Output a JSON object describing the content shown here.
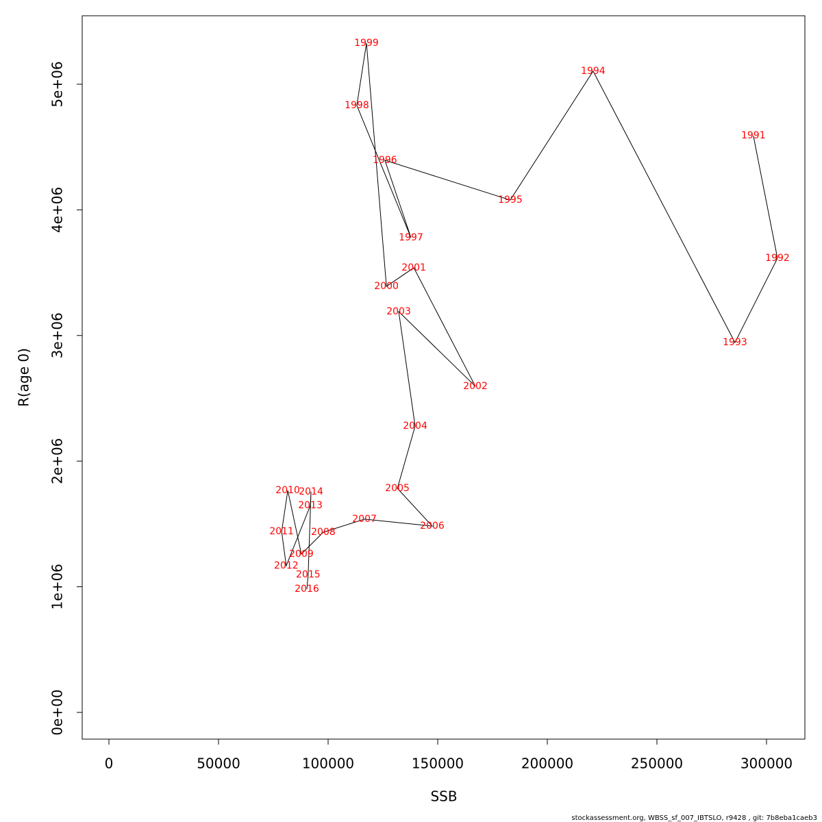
{
  "chart_data": {
    "type": "line",
    "xlabel": "SSB",
    "ylabel": "R(age 0)",
    "footnote": "stockassessment.org, WBSS_sf_007_IBTSLO, r9428 , git: 7b8eba1caeb3",
    "labels": [
      "1991",
      "1992",
      "1993",
      "1994",
      "1995",
      "1996",
      "1997",
      "1998",
      "1999",
      "2000",
      "2001",
      "2002",
      "2003",
      "2004",
      "2005",
      "2006",
      "2007",
      "2008",
      "2009",
      "2010",
      "2011",
      "2012",
      "2013",
      "2014",
      "2015",
      "2016"
    ],
    "x": [
      294000,
      305000,
      285600,
      220900,
      183100,
      125900,
      137800,
      113100,
      117500,
      126600,
      139100,
      167200,
      132200,
      139700,
      131600,
      147500,
      116600,
      97800,
      87800,
      81600,
      78800,
      80900,
      91900,
      92200,
      90900,
      90300
    ],
    "values": [
      4590000,
      3615000,
      2944000,
      5104000,
      4078000,
      4395000,
      3779000,
      4831000,
      5327000,
      3391000,
      3539000,
      2595000,
      3190000,
      2279000,
      1783000,
      1483000,
      1538000,
      1434000,
      1260000,
      1767000,
      1439000,
      1167000,
      1647000,
      1756000,
      1096000,
      981000
    ],
    "line_color": "#000000",
    "label_color": "#ff0000",
    "xlim": [
      -12188,
      317500
    ],
    "ylim": [
      -212700,
      5545000
    ],
    "xticks": [
      0,
      50000,
      100000,
      150000,
      200000,
      250000,
      300000
    ],
    "yticks": [
      {
        "value": 0,
        "label": "0e+00"
      },
      {
        "value": 1000000,
        "label": "1e+06"
      },
      {
        "value": 2000000,
        "label": "2e+06"
      },
      {
        "value": 3000000,
        "label": "3e+06"
      },
      {
        "value": 4000000,
        "label": "4e+06"
      },
      {
        "value": 5000000,
        "label": "5e+06"
      }
    ]
  }
}
